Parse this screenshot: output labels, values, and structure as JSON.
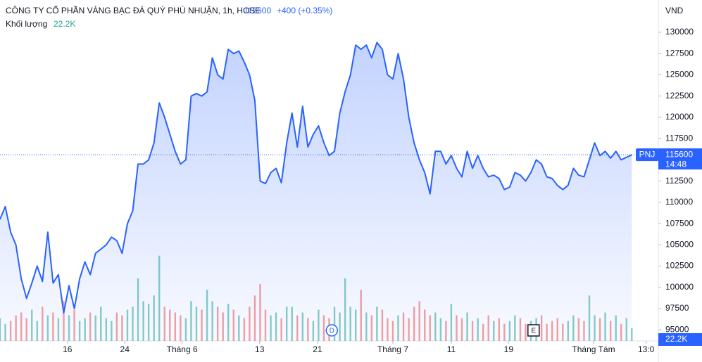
{
  "chart_data": {
    "type": "line",
    "title": "CÔNG TY CỔ PHẦN VÀNG BẠC ĐÁ QUÝ PHÚ NHUẬN, 1h, HOSE",
    "last_price": 115600,
    "change_label": "+400 (+0.35%)",
    "volume_title": "Khối lượng",
    "volume_label": "22.2K",
    "unit": "VND",
    "symbol": "PNJ",
    "time": "14:48",
    "x": [
      0,
      1,
      2,
      3,
      4,
      5,
      6,
      7,
      8,
      9,
      10,
      11,
      12,
      13,
      14,
      15,
      16,
      17,
      18,
      19,
      20,
      21,
      22,
      23,
      24,
      25,
      26,
      27,
      28,
      29,
      30,
      31,
      32,
      33,
      34,
      35,
      36,
      37,
      38,
      39,
      40,
      41,
      42,
      43,
      44,
      45,
      46,
      47,
      48,
      49,
      50,
      51,
      52,
      53,
      54,
      55,
      56,
      57,
      58,
      59,
      60,
      61,
      62,
      63,
      64,
      65,
      66,
      67,
      68,
      69,
      70,
      71,
      72,
      73,
      74,
      75,
      76,
      77,
      78,
      79,
      80,
      81,
      82,
      83,
      84,
      85,
      86,
      87,
      88,
      89,
      90,
      91,
      92,
      93,
      94,
      95,
      96,
      97,
      98,
      99,
      100,
      101,
      102,
      103,
      104,
      105,
      106,
      107,
      108,
      109,
      110,
      111,
      112,
      113,
      114,
      115,
      116,
      117,
      118,
      119
    ],
    "series": [
      {
        "name": "PNJ",
        "color": "#2962ff",
        "values": [
          108000,
          109500,
          106500,
          105000,
          101000,
          98700,
          100500,
          102500,
          100700,
          106500,
          100500,
          101500,
          97000,
          100200,
          97500,
          101000,
          103000,
          101500,
          104000,
          104500,
          105000,
          105900,
          105500,
          104000,
          107500,
          109000,
          114500,
          114500,
          115000,
          117000,
          121700,
          120000,
          118000,
          116000,
          114500,
          115000,
          122500,
          122800,
          122500,
          123000,
          127000,
          125000,
          124500,
          128000,
          127500,
          127800,
          126500,
          125000,
          122000,
          112500,
          112200,
          113500,
          114000,
          112300,
          117000,
          120500,
          116500,
          121300,
          116500,
          118000,
          119000,
          117000,
          115500,
          116000,
          120500,
          123000,
          125000,
          128500,
          128000,
          128500,
          127000,
          128800,
          128000,
          125000,
          124500,
          127500,
          124500,
          120000,
          117000,
          115000,
          113500,
          111000,
          116000,
          116000,
          114500,
          115500,
          114000,
          113000,
          116000,
          114000,
          115500,
          114000,
          113000,
          113200,
          112800,
          111500,
          111800,
          113500,
          113200,
          112500,
          113500,
          115000,
          114500,
          113000,
          112800,
          112000,
          111500,
          112000,
          114000,
          113200,
          113000,
          115000,
          117000,
          115500,
          116000,
          115200,
          116000,
          115000,
          115300,
          115600
        ]
      }
    ],
    "volume": {
      "up_color": "#26a69a",
      "down_color": "#ef5350",
      "values": [
        40,
        30,
        35,
        45,
        50,
        40,
        55,
        35,
        60,
        45,
        50,
        40,
        70,
        45,
        55,
        35,
        40,
        50,
        45,
        60,
        40,
        35,
        50,
        45,
        55,
        60,
        110,
        70,
        65,
        80,
        150,
        60,
        55,
        50,
        45,
        40,
        70,
        60,
        55,
        90,
        70,
        60,
        50,
        65,
        55,
        45,
        40,
        60,
        80,
        100,
        55,
        45,
        50,
        40,
        60,
        60,
        45,
        50,
        40,
        35,
        55,
        45,
        40,
        60,
        50,
        110,
        60,
        55,
        90,
        50,
        45,
        60,
        55,
        40,
        35,
        45,
        50,
        40,
        60,
        70,
        55,
        45,
        50,
        40,
        35,
        65,
        45,
        40,
        50,
        35,
        40,
        30,
        45,
        35,
        40,
        30,
        35,
        45,
        40,
        30,
        35,
        40,
        45,
        30,
        35,
        40,
        30,
        35,
        45,
        40,
        35,
        80,
        45,
        40,
        50,
        35,
        45,
        30,
        40,
        22.2
      ]
    },
    "ylim": [
      93700,
      133800
    ],
    "yticks": [
      95000,
      97500,
      100000,
      102500,
      105000,
      107500,
      110000,
      112500,
      115000,
      117500,
      120000,
      122500,
      125000,
      127500,
      130000
    ],
    "y2lim": [
      0,
      600
    ],
    "xlim": [
      0,
      124
    ],
    "xticks": [
      {
        "value": 12.7,
        "label": "16"
      },
      {
        "value": 23.5,
        "label": "24"
      },
      {
        "value": 34.3,
        "label": "Tháng 6"
      },
      {
        "value": 48.9,
        "label": "13"
      },
      {
        "value": 59.8,
        "label": "21"
      },
      {
        "value": 74,
        "label": "Tháng 7"
      },
      {
        "value": 85,
        "label": "11"
      },
      {
        "value": 95.8,
        "label": "19"
      },
      {
        "value": 111.8,
        "label": "Tháng Tám"
      },
      {
        "value": 121.7,
        "label": "13:0"
      }
    ],
    "annotations": [
      {
        "x": 62.5,
        "label": "D"
      },
      {
        "x": 100.5,
        "label": "E"
      }
    ]
  }
}
